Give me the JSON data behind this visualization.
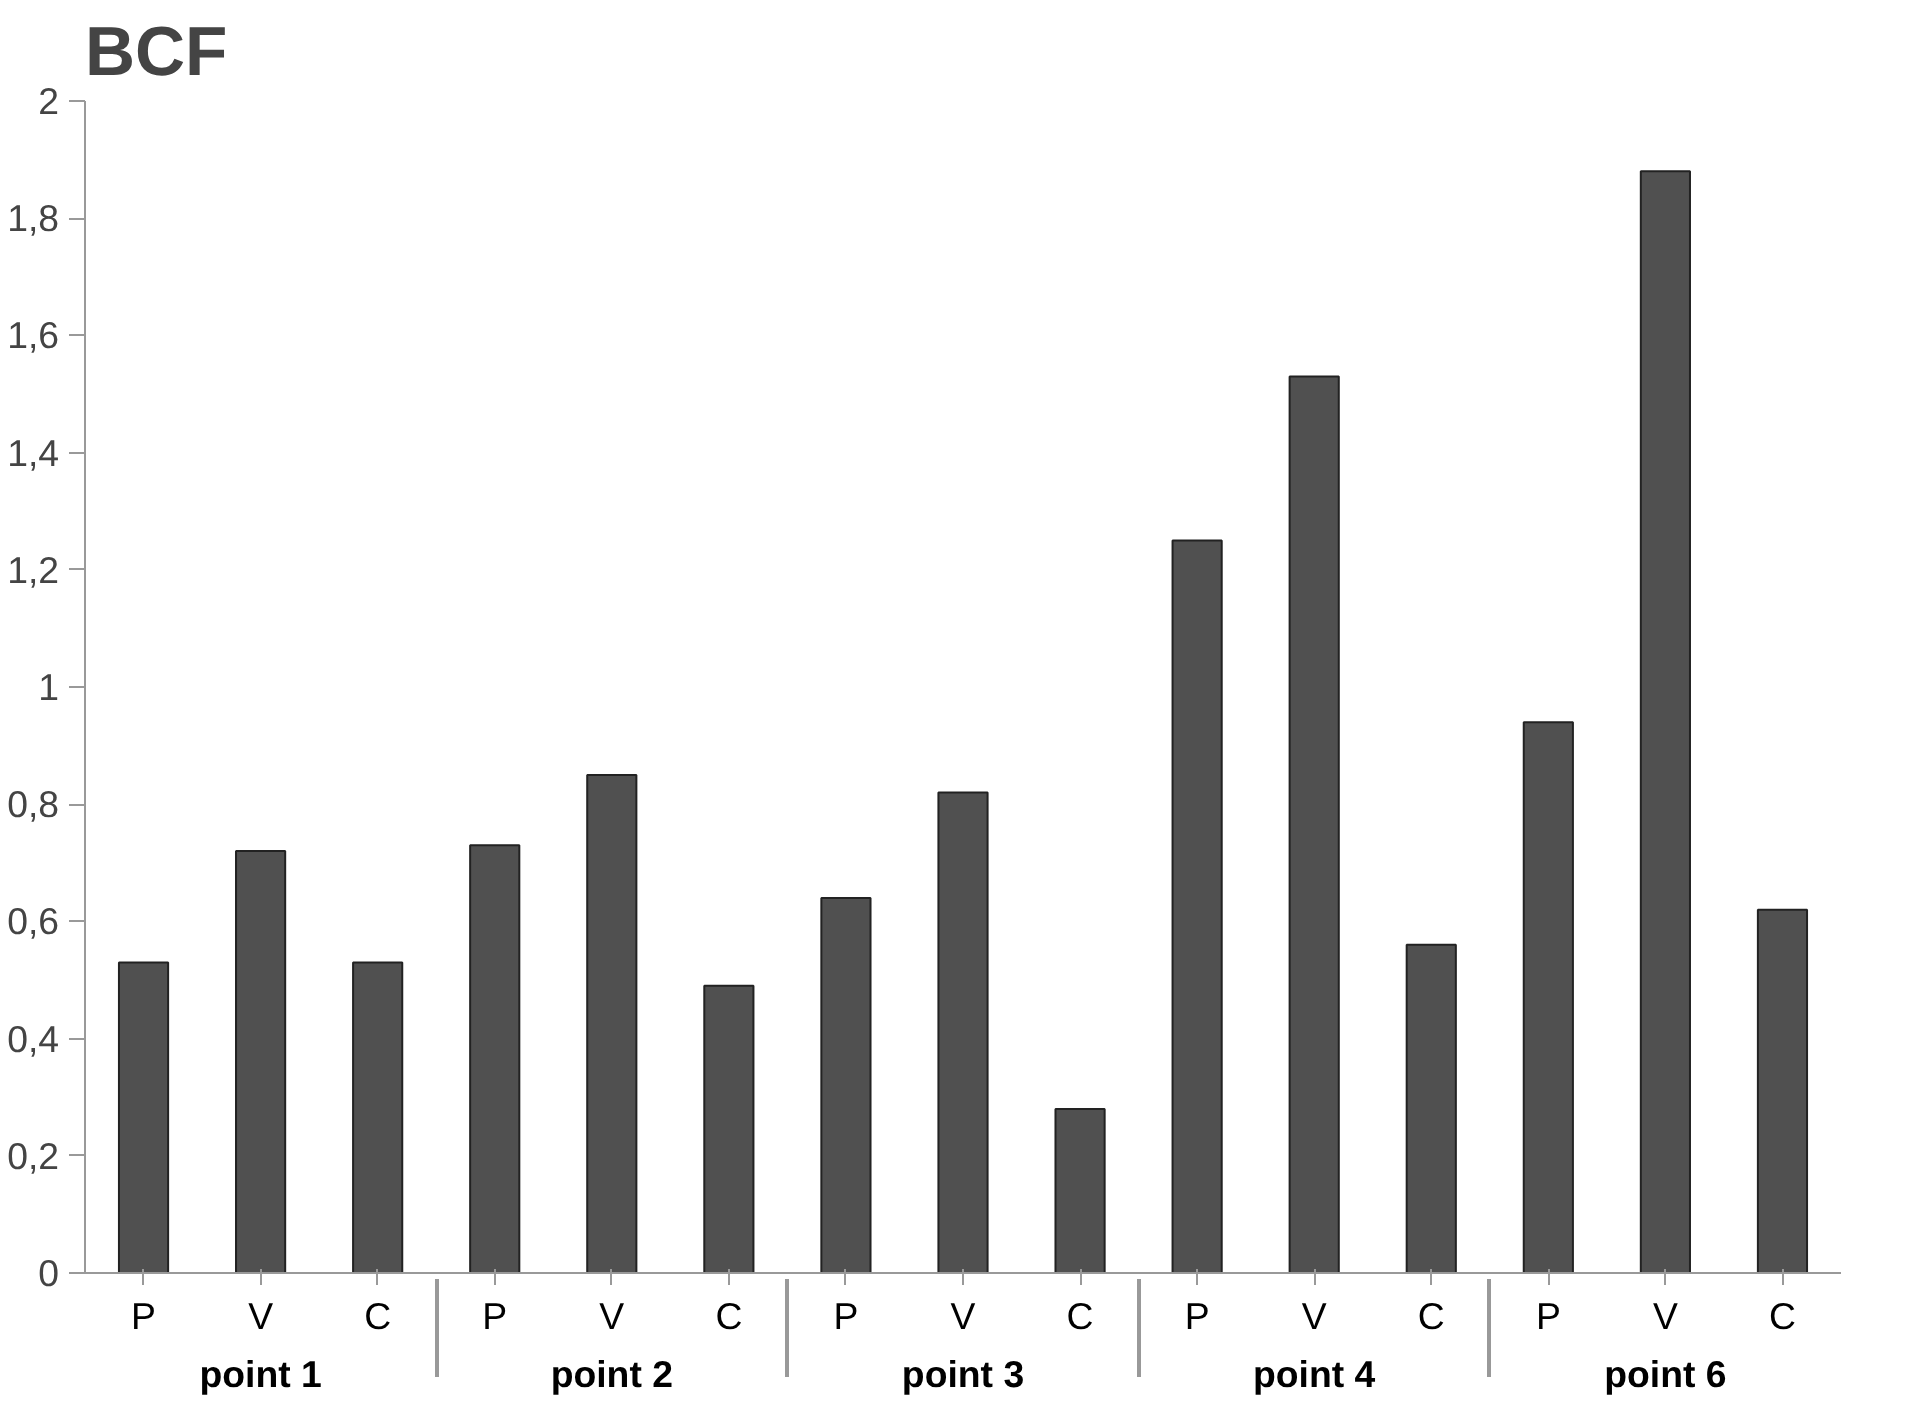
{
  "chart_data": {
    "type": "bar",
    "title": "BCF",
    "categories": [
      "P",
      "V",
      "C",
      "P",
      "V",
      "C",
      "P",
      "V",
      "C",
      "P",
      "V",
      "C",
      "P",
      "V",
      "C"
    ],
    "values": [
      0.53,
      0.72,
      0.53,
      0.73,
      0.85,
      0.49,
      0.64,
      0.82,
      0.28,
      1.25,
      1.53,
      0.56,
      0.94,
      1.88,
      0.62
    ],
    "color": "#505050",
    "annotations": [
      "point 1",
      "point 2",
      "point 3",
      "point 4",
      "point 6"
    ],
    "ylim": [
      0,
      2
    ],
    "yticks": [
      0,
      {
        "value": 0.2,
        "label": "0,2"
      },
      {
        "value": 0.4,
        "label": "0,4"
      },
      {
        "value": 0.6,
        "label": "0,6"
      },
      {
        "value": 0.8,
        "label": "0,8"
      },
      1,
      {
        "value": 1.2,
        "label": "1,2"
      },
      {
        "value": 1.4,
        "label": "1,4"
      },
      {
        "value": 1.6,
        "label": "1,6"
      },
      {
        "value": 1.8,
        "label": "1,8"
      },
      2
    ],
    "grid": false
  }
}
